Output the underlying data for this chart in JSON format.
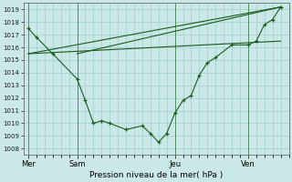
{
  "background_color": "#cbe8e8",
  "grid_color": "#9fcfcf",
  "line_color": "#1a5c1a",
  "ylabel": "Pression niveau de la mer( hPa )",
  "ylim": [
    1007.5,
    1019.5
  ],
  "yticks": [
    1008,
    1009,
    1010,
    1011,
    1012,
    1013,
    1014,
    1015,
    1016,
    1017,
    1018,
    1019
  ],
  "xtick_labels": [
    "Mer",
    "Sam",
    "Jeu",
    "Ven"
  ],
  "xtick_positions": [
    0,
    3,
    9,
    13.5
  ],
  "vline_positions": [
    0,
    3,
    9,
    13.5
  ],
  "xlim": [
    -0.3,
    16.0
  ],
  "series1_x": [
    0,
    0.5,
    1.5,
    3.0,
    3.5,
    4.0,
    4.5,
    5.0,
    6.0,
    7.0,
    7.5,
    8.0,
    8.5,
    9.0,
    9.5,
    10.0,
    10.5,
    11.0,
    11.5,
    12.5,
    13.5,
    14.0,
    14.5,
    15.0,
    15.5
  ],
  "series1_y": [
    1017.5,
    1016.8,
    1015.5,
    1013.5,
    1011.8,
    1010.0,
    1010.2,
    1010.0,
    1009.5,
    1009.8,
    1009.2,
    1008.5,
    1009.2,
    1010.8,
    1011.8,
    1012.2,
    1013.8,
    1014.8,
    1015.2,
    1016.2,
    1016.2,
    1016.5,
    1017.8,
    1018.2,
    1019.2
  ],
  "series2_x": [
    0,
    15.5
  ],
  "series2_y": [
    1015.5,
    1019.2
  ],
  "series3_x": [
    3.0,
    15.5
  ],
  "series3_y": [
    1015.5,
    1019.2
  ],
  "series4_x": [
    0,
    15.5
  ],
  "series4_y": [
    1015.5,
    1016.5
  ]
}
